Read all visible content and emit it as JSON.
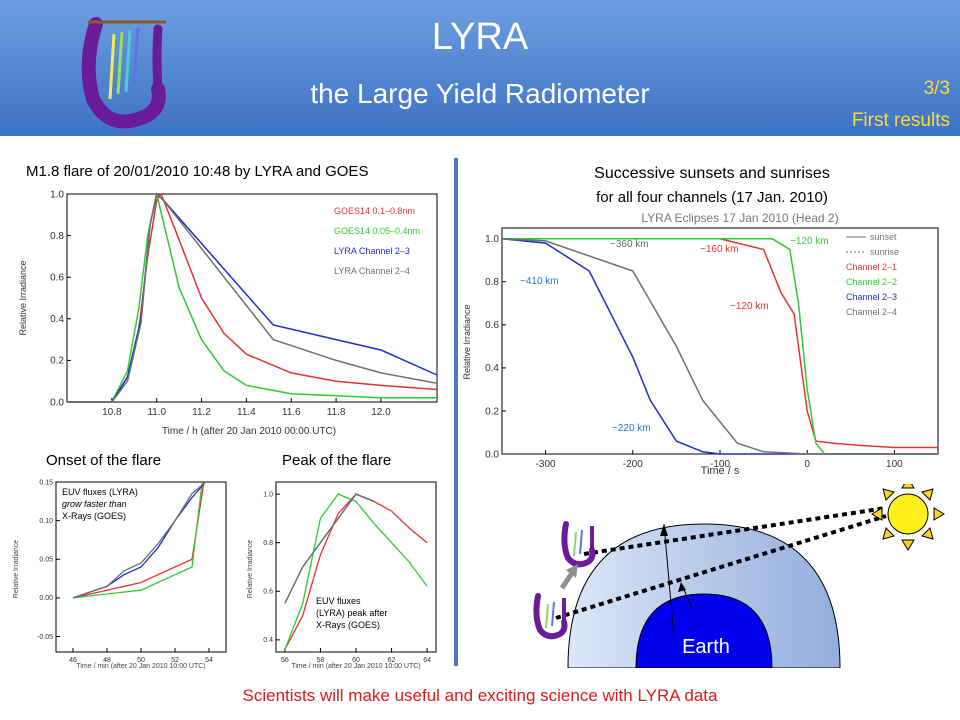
{
  "header": {
    "title": "LYRA",
    "subtitle": "the Large Yield Radiometer",
    "page_number": "3/3",
    "section": "First results"
  },
  "left_panel": {
    "caption": "M1.8 flare of 20/01/2010 10:48 by LYRA and GOES",
    "ylabel": "Relative Irradiance",
    "xlabel": "Time / h (after 20 Jan 2010 00:00 UTC)",
    "legend": [
      "GOES14 0.1–0.8nm",
      "GOES14 0.05–0.4nm",
      "LYRA Channel 2–3",
      "LYRA Channel 2–4"
    ]
  },
  "onset": {
    "caption": "Onset of the flare",
    "note_line1": "EUV fluxes (LYRA)",
    "note_line2": "grow faster than",
    "note_line3": "X-Rays (GOES)",
    "ylabel": "Relative Irradiance",
    "xlabel": "Time / min (after 20 Jan 2010 10:00 UTC)"
  },
  "peak": {
    "caption": "Peak of the flare",
    "note_line1": "EUV fluxes",
    "note_line2": "(LYRA) peak after",
    "note_line3": "X-Rays (GOES)",
    "ylabel": "Relative Irradiance",
    "xlabel": "Time / min (after 20 Jan 2010 10:00 UTC)"
  },
  "eclipse": {
    "caption_line1": "Successive sunsets and sunrises",
    "caption_line2": "for all four channels (17 Jan. 2010)",
    "plot_title": "LYRA Eclipses 17 Jan 2010 (Head 2)",
    "ylabel": "Relative Irradiance",
    "xlabel": "Time / s",
    "legend": [
      "sunset",
      "sunrise",
      "Channel 2–1",
      "Channel 2–2",
      "Channel 2–3",
      "Channel 2–4"
    ],
    "annotations": [
      "~360 km",
      "~160 km",
      "~120 km",
      "~410 km",
      "~120 km",
      "~220 km"
    ]
  },
  "diagram": {
    "earth_label": "Earth"
  },
  "footer": "Scientists will make useful and exciting science with LYRA data",
  "colors": {
    "header_top": "#6d9ee0",
    "header_bottom": "#3e73c4",
    "goes_long": "#e5342f",
    "goes_short": "#2fcc2f",
    "lyra_23": "#1c2fc8",
    "lyra_24": "#707070",
    "footer_text": "#e01919"
  },
  "chart_data": [
    {
      "type": "line",
      "title": "M1.8 flare of 20/01/2010 10:48 by LYRA and GOES",
      "xlabel": "Time / h (after 20 Jan 2010 00:00 UTC)",
      "ylabel": "Relative Irradiance",
      "xlim": [
        10.6,
        12.25
      ],
      "ylim": [
        0.0,
        1.0
      ],
      "xticks": [
        10.8,
        11.0,
        11.2,
        11.4,
        11.6,
        11.8,
        12.0
      ],
      "yticks": [
        0.0,
        0.2,
        0.4,
        0.6,
        0.8,
        1.0
      ],
      "series": [
        {
          "name": "GOES14 0.1–0.8nm",
          "x": [
            10.6,
            10.8,
            10.87,
            10.92,
            10.96,
            11.0,
            11.02,
            11.1,
            11.2,
            11.3,
            11.4,
            11.6,
            11.8,
            12.0,
            12.25
          ],
          "y": [
            0.0,
            0.0,
            0.12,
            0.35,
            0.7,
            0.97,
            1.0,
            0.78,
            0.5,
            0.33,
            0.23,
            0.14,
            0.1,
            0.08,
            0.06
          ]
        },
        {
          "name": "GOES14 0.05–0.4nm",
          "x": [
            10.6,
            10.8,
            10.87,
            10.92,
            10.96,
            11.0,
            11.1,
            11.2,
            11.3,
            11.4,
            11.6,
            11.8,
            12.0,
            12.25
          ],
          "y": [
            0.0,
            0.0,
            0.15,
            0.45,
            0.8,
            1.0,
            0.55,
            0.3,
            0.15,
            0.08,
            0.04,
            0.03,
            0.02,
            0.02
          ]
        },
        {
          "name": "LYRA Channel 2–3",
          "x": [
            10.6,
            10.8,
            10.87,
            10.93,
            10.97,
            11.0,
            11.03,
            11.52,
            11.8,
            12.0,
            12.25
          ],
          "y": [
            0.0,
            0.0,
            0.12,
            0.4,
            0.85,
            1.0,
            0.97,
            0.37,
            0.3,
            0.25,
            0.13
          ]
        },
        {
          "name": "LYRA Channel 2–4",
          "x": [
            10.6,
            10.8,
            10.87,
            10.93,
            10.97,
            11.0,
            11.03,
            11.52,
            11.8,
            12.0,
            12.25
          ],
          "y": [
            0.0,
            0.0,
            0.1,
            0.38,
            0.85,
            1.0,
            0.97,
            0.3,
            0.2,
            0.14,
            0.09
          ]
        }
      ]
    },
    {
      "type": "line",
      "title": "Onset of the flare",
      "xlabel": "Time / min (after 20 Jan 2010 10:00 UTC)",
      "ylabel": "Relative Irradiance",
      "xlim": [
        45,
        55
      ],
      "ylim": [
        -0.07,
        0.15
      ],
      "xticks": [
        46,
        48,
        50,
        52,
        54
      ],
      "yticks": [
        -0.05,
        0.0,
        0.05,
        0.1,
        0.15
      ],
      "series": [
        {
          "name": "GOES14 0.1–0.8nm",
          "x": [
            46,
            48,
            50,
            51,
            52,
            53,
            53.7
          ],
          "y": [
            0.0,
            0.01,
            0.02,
            0.03,
            0.04,
            0.05,
            0.15
          ]
        },
        {
          "name": "GOES14 0.05–0.4nm",
          "x": [
            46,
            48,
            50,
            51,
            52,
            53,
            53.6
          ],
          "y": [
            0.0,
            0.005,
            0.01,
            0.02,
            0.03,
            0.04,
            0.15
          ]
        },
        {
          "name": "LYRA Channel 2–3",
          "x": [
            46,
            48,
            49,
            50,
            51,
            52,
            53,
            53.8
          ],
          "y": [
            0.0,
            0.015,
            0.03,
            0.04,
            0.065,
            0.1,
            0.13,
            0.15
          ]
        },
        {
          "name": "LYRA Channel 2–4",
          "x": [
            46,
            48,
            49,
            50,
            51,
            52,
            53,
            53.8
          ],
          "y": [
            0.0,
            0.015,
            0.035,
            0.045,
            0.07,
            0.1,
            0.135,
            0.15
          ]
        }
      ]
    },
    {
      "type": "line",
      "title": "Peak of the flare",
      "xlabel": "Time / min (after 20 Jan 2010 10:00 UTC)",
      "ylabel": "Relative Irradiance",
      "xlim": [
        55.5,
        64.5
      ],
      "ylim": [
        0.35,
        1.05
      ],
      "xticks": [
        56,
        58,
        60,
        62,
        64
      ],
      "yticks": [
        0.4,
        0.6,
        0.8,
        1.0
      ],
      "series": [
        {
          "name": "GOES14 0.1–0.8nm",
          "x": [
            56,
            57,
            58,
            59,
            60,
            61,
            62,
            63,
            64
          ],
          "y": [
            0.36,
            0.5,
            0.75,
            0.92,
            1.0,
            0.97,
            0.93,
            0.86,
            0.8
          ]
        },
        {
          "name": "GOES14 0.05–0.4nm",
          "x": [
            56,
            57,
            58,
            59,
            60,
            61,
            62,
            63,
            64
          ],
          "y": [
            0.36,
            0.55,
            0.9,
            1.0,
            0.97,
            0.88,
            0.8,
            0.72,
            0.62
          ]
        },
        {
          "name": "LYRA Channel 2–3",
          "x": [
            56,
            57,
            58,
            59,
            60,
            61
          ],
          "y": [
            0.55,
            0.7,
            0.8,
            0.9,
            1.0,
            0.97
          ]
        },
        {
          "name": "LYRA Channel 2–4",
          "x": [
            56,
            57,
            58,
            59,
            60,
            61
          ],
          "y": [
            0.55,
            0.7,
            0.8,
            0.9,
            1.0,
            0.97
          ]
        }
      ]
    },
    {
      "type": "line",
      "title": "LYRA Eclipses 17 Jan 2010 (Head 2)",
      "xlabel": "Time / s",
      "ylabel": "Relative Irradiance",
      "xlim": [
        -350,
        150
      ],
      "ylim": [
        0.0,
        1.05
      ],
      "xticks": [
        -300,
        -200,
        -100,
        0,
        100
      ],
      "yticks": [
        0.0,
        0.2,
        0.4,
        0.6,
        0.8,
        1.0
      ],
      "series": [
        {
          "name": "Channel 2–1",
          "x": [
            -350,
            -100,
            -50,
            -30,
            -15,
            0,
            10,
            30,
            60,
            100,
            150
          ],
          "y": [
            1.0,
            1.0,
            0.95,
            0.75,
            0.65,
            0.2,
            0.06,
            0.05,
            0.04,
            0.03,
            0.03
          ]
        },
        {
          "name": "Channel 2–2",
          "x": [
            -350,
            -40,
            -20,
            -10,
            0,
            10,
            20,
            150
          ],
          "y": [
            1.0,
            1.0,
            0.95,
            0.7,
            0.3,
            0.05,
            0.0,
            0.0
          ]
        },
        {
          "name": "Channel 2–3",
          "x": [
            -350,
            -300,
            -250,
            -200,
            -180,
            -150,
            -120,
            -100,
            0,
            150
          ],
          "y": [
            1.0,
            0.98,
            0.85,
            0.45,
            0.25,
            0.06,
            0.01,
            0.0,
            0.0,
            0.0
          ]
        },
        {
          "name": "Channel 2–4",
          "x": [
            -350,
            -300,
            -200,
            -150,
            -120,
            -80,
            -50,
            0,
            150
          ],
          "y": [
            1.0,
            0.99,
            0.85,
            0.5,
            0.25,
            0.05,
            0.01,
            0.0,
            0.0
          ]
        }
      ]
    }
  ]
}
